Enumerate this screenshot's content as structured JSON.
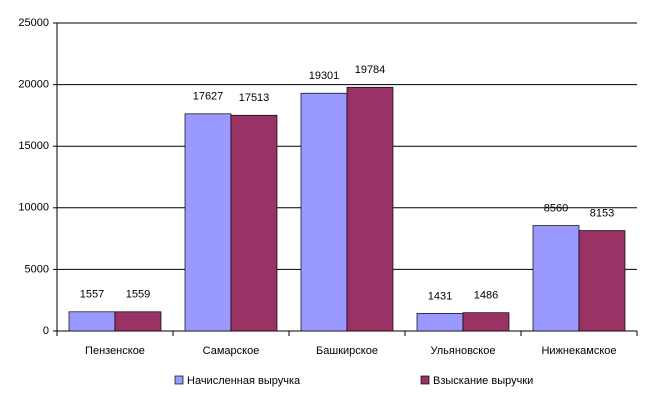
{
  "chart_data": {
    "type": "bar",
    "categories": [
      "Пензенское",
      "Самарское",
      "Башкирское",
      "Ульяновское",
      "Нижнекамское"
    ],
    "series": [
      {
        "name": "Начисленная выручка",
        "color": "#9999ff",
        "values": [
          1557,
          17627,
          19301,
          1431,
          8560
        ]
      },
      {
        "name": "Взыскание выручки",
        "color": "#993366",
        "values": [
          1559,
          17513,
          19784,
          1486,
          8153
        ]
      }
    ],
    "ylim": [
      0,
      25000
    ],
    "yticks": [
      0,
      5000,
      10000,
      15000,
      20000,
      25000
    ],
    "grid": true,
    "legend": "bottom"
  }
}
